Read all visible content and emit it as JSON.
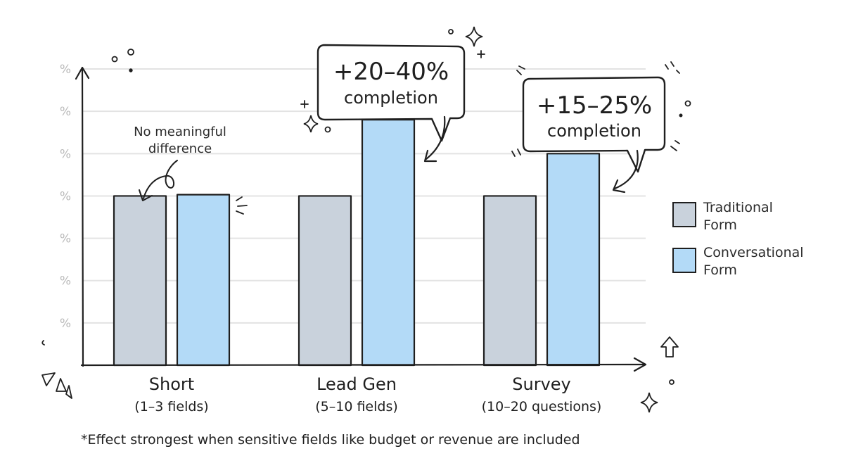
{
  "chart_data": {
    "type": "bar",
    "categories": [
      {
        "name": "Short",
        "sub": "(1–3 fields)"
      },
      {
        "name": "Lead Gen",
        "sub": "(5–10 fields)"
      },
      {
        "name": "Survey",
        "sub": "(10–20 questions)"
      }
    ],
    "series": [
      {
        "name": "Traditional Form",
        "color": "#c9d2dc",
        "values": [
          4,
          4,
          4
        ]
      },
      {
        "name": "Conversational Form",
        "color": "#b3daf7",
        "values": [
          4.03,
          5.8,
          5
        ]
      }
    ],
    "y_tick_labels": [
      "%",
      "%",
      "%",
      "%",
      "%",
      "%",
      "%"
    ],
    "ylim": [
      0,
      7.3
    ],
    "grid": true,
    "legend_position": "right",
    "annotations": [
      {
        "big": "+20–40%",
        "small": "completion"
      },
      {
        "big": "+15–25%",
        "small": "completion"
      }
    ],
    "note": {
      "line1": "No meaningful",
      "line2": "difference"
    }
  },
  "footnote": "*Effect strongest when sensitive fields like budget or revenue are included"
}
